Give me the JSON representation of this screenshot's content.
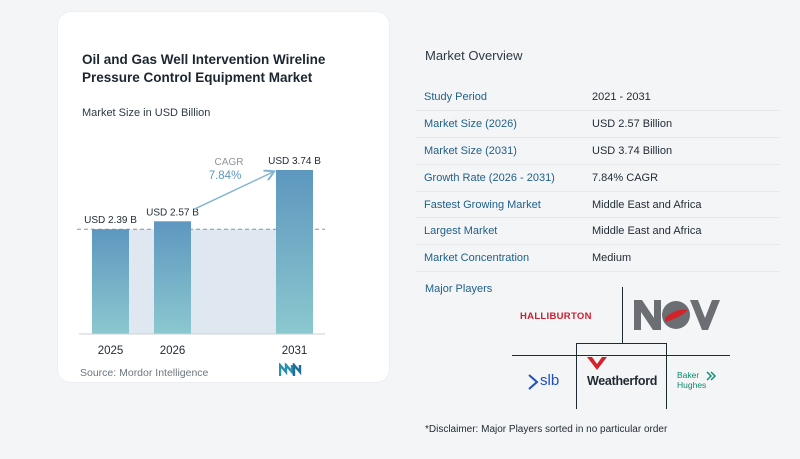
{
  "chart": {
    "title": "Oil and Gas Well Intervention Wireline Pressure Control Equipment Market",
    "subtitle": "Market Size in USD Billion",
    "source": "Source: Mordor Intelligence",
    "cagr_label": "CAGR",
    "cagr_value": "7.84%"
  },
  "chart_data": {
    "type": "bar",
    "categories": [
      "2025",
      "2026",
      "2031"
    ],
    "values": [
      2.39,
      2.57,
      3.74
    ],
    "data_labels": [
      "USD 2.39 B",
      "USD 2.57 B",
      "USD 3.74 B"
    ],
    "title": "Oil and Gas Well Intervention Wireline Pressure Control Equipment Market",
    "ylabel": "Market Size in USD Billion",
    "annotation": "CAGR 7.84%",
    "ylim": [
      0,
      3.74
    ],
    "grid": false,
    "colors": {
      "bar_top": "#5d97bf",
      "bar_bottom": "#8bc8cf",
      "band": "#dfe8f0",
      "arrow": "#7fb3d5"
    }
  },
  "overview": {
    "title": "Market Overview",
    "rows": [
      {
        "key": "Study Period",
        "value": "2021 - 2031"
      },
      {
        "key": "Market Size (2026)",
        "value": "USD 2.57 Billion"
      },
      {
        "key": "Market Size (2031)",
        "value": "USD 3.74 Billion"
      },
      {
        "key": "Growth Rate (2026 - 2031)",
        "value": "7.84% CAGR"
      },
      {
        "key": "Fastest Growing Market",
        "value": "Middle East and Africa"
      },
      {
        "key": "Largest Market",
        "value": "Middle East and Africa"
      },
      {
        "key": "Market Concentration",
        "value": "Medium"
      }
    ]
  },
  "players": {
    "label": "Major Players",
    "halliburton": "HALLIBURTON",
    "nov": "NOV",
    "slb": "slb",
    "weatherford": "Weatherford",
    "baker1": "Baker",
    "baker2": "Hughes"
  },
  "disclaimer": "*Disclaimer: Major Players sorted in no particular order"
}
